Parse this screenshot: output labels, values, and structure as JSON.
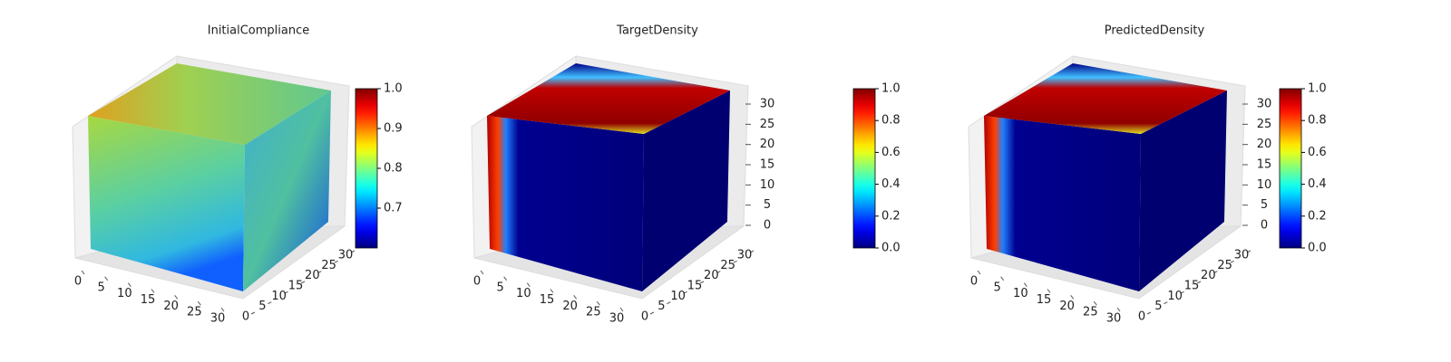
{
  "chart_data": [
    {
      "type": "voxel",
      "title": "InitialCompliance",
      "colormap": "jet",
      "xticks": [
        0,
        5,
        10,
        15,
        20,
        25,
        30
      ],
      "yticks": [
        0,
        5,
        10,
        15,
        20,
        25,
        30
      ],
      "zticks": [],
      "xlim": [
        0,
        30
      ],
      "ylim": [
        0,
        30
      ],
      "zlim": [
        0,
        30
      ],
      "colorbar_lim": [
        0.6,
        1.0
      ],
      "colorbar_ticks": [
        {
          "value": 0.7,
          "label": "0.7"
        },
        {
          "value": 0.8,
          "label": "0.8"
        },
        {
          "value": 0.9,
          "label": "0.9"
        },
        {
          "value": 1.0,
          "label": "1.0"
        }
      ]
    },
    {
      "type": "voxel",
      "title": "TargetDensity",
      "colormap": "jet",
      "xticks": [
        0,
        5,
        10,
        15,
        20,
        25,
        30
      ],
      "yticks": [
        0,
        5,
        10,
        15,
        20,
        25,
        30
      ],
      "zticks": [
        0,
        5,
        10,
        15,
        20,
        25,
        30
      ],
      "xlim": [
        0,
        30
      ],
      "ylim": [
        0,
        30
      ],
      "zlim": [
        0,
        30
      ],
      "colorbar_lim": [
        0,
        1.0
      ],
      "colorbar_ticks": [
        {
          "value": 0,
          "label": "0.0"
        },
        {
          "value": 0.2,
          "label": "0.2"
        },
        {
          "value": 0.4,
          "label": "0.4"
        },
        {
          "value": 0.6,
          "label": "0.6"
        },
        {
          "value": 0.8,
          "label": "0.8"
        },
        {
          "value": 1.0,
          "label": "1.0"
        }
      ]
    },
    {
      "type": "voxel",
      "title": "PredictedDensity",
      "colormap": "jet",
      "xticks": [
        0,
        5,
        10,
        15,
        20,
        25,
        30
      ],
      "yticks": [
        0,
        5,
        10,
        15,
        20,
        25,
        30
      ],
      "zticks": [
        0,
        5,
        10,
        15,
        20,
        25,
        30
      ],
      "xlim": [
        0,
        30
      ],
      "ylim": [
        0,
        30
      ],
      "zlim": [
        0,
        30
      ],
      "colorbar_lim": [
        0,
        1.0
      ],
      "colorbar_ticks": [
        {
          "value": 0,
          "label": "0.0"
        },
        {
          "value": 0.2,
          "label": "0.2"
        },
        {
          "value": 0.4,
          "label": "0.4"
        },
        {
          "value": 0.6,
          "label": "0.6"
        },
        {
          "value": 0.8,
          "label": "0.8"
        },
        {
          "value": 1.0,
          "label": "1.0"
        }
      ]
    }
  ]
}
